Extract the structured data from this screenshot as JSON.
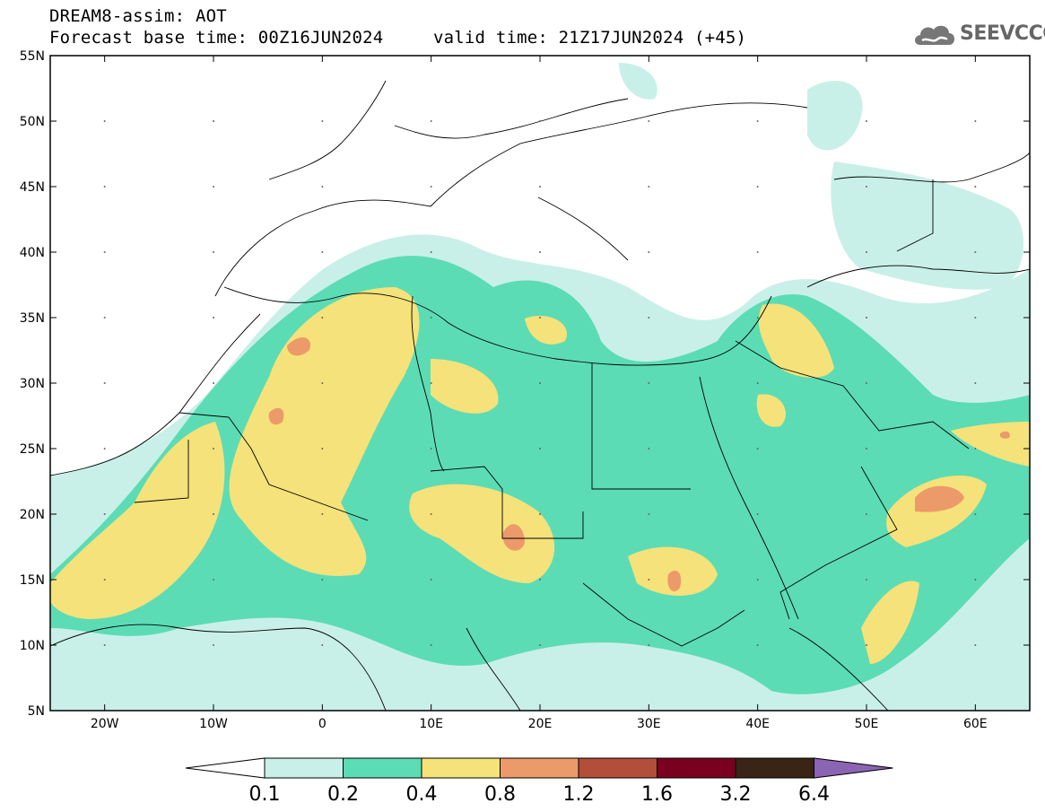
{
  "header": {
    "model": "DREAM8-assim: AOT",
    "base_time": "Forecast base time: 00Z16JUN2024",
    "valid_time": "valid time: 21Z17JUN2024 (+45)"
  },
  "logo": {
    "text": "SEEVCCC",
    "icon": "cloud-icon"
  },
  "map": {
    "lat_labels": [
      "55N",
      "50N",
      "45N",
      "40N",
      "35N",
      "30N",
      "25N",
      "20N",
      "15N",
      "10N",
      "5N"
    ],
    "lon_labels": [
      "20W",
      "10W",
      "0",
      "10E",
      "20E",
      "30E",
      "40E",
      "50E",
      "60E"
    ],
    "lat_range": [
      5,
      55
    ],
    "lon_range": [
      -25,
      65
    ]
  },
  "colorbar": {
    "levels": [
      "0.1",
      "0.2",
      "0.4",
      "0.8",
      "1.2",
      "1.6",
      "3.2",
      "6.4"
    ],
    "colors": [
      "#ffffff",
      "#c9f0e8",
      "#5cdcb4",
      "#f6e27a",
      "#ec9a6a",
      "#b34e3a",
      "#7a0020",
      "#3a2416",
      "#8c64b4"
    ]
  }
}
